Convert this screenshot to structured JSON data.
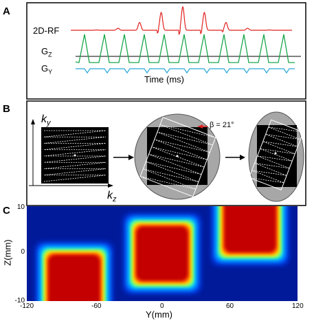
{
  "panel_letters": [
    "A",
    "B",
    "C"
  ],
  "panel_a": {
    "rows": [
      "2D-RF",
      "G",
      "G"
    ],
    "row_subscripts": [
      "",
      "Z",
      "Y"
    ],
    "time_label": "Time (ms)",
    "colors": {
      "rf": "#e0201e",
      "gz": "#1aa64a",
      "gy": "#2aa7d8",
      "baseline": "#000000"
    }
  },
  "panel_b": {
    "ky_label": "k",
    "ky_sub": "y",
    "kz_label": "k",
    "kz_sub": "z",
    "beta_label": "β = 21°",
    "beta_deg": 21
  },
  "chart_data": {
    "type": "heatmap",
    "xlabel": "Y(mm)",
    "ylabel": "Z(mm)",
    "xlim": [
      -120,
      120
    ],
    "ylim": [
      -10,
      10
    ],
    "xticks": [
      "-120",
      "-60",
      "0",
      "60",
      "120"
    ],
    "yticks": [
      "10",
      "0",
      "-10"
    ],
    "blobs": [
      {
        "y_center": -78,
        "z_center": -6,
        "width_mm": 48,
        "height_mm": 5
      },
      {
        "y_center": 0,
        "z_center": 0,
        "width_mm": 48,
        "height_mm": 5
      },
      {
        "y_center": 78,
        "z_center": 6,
        "width_mm": 48,
        "height_mm": 5
      }
    ]
  }
}
